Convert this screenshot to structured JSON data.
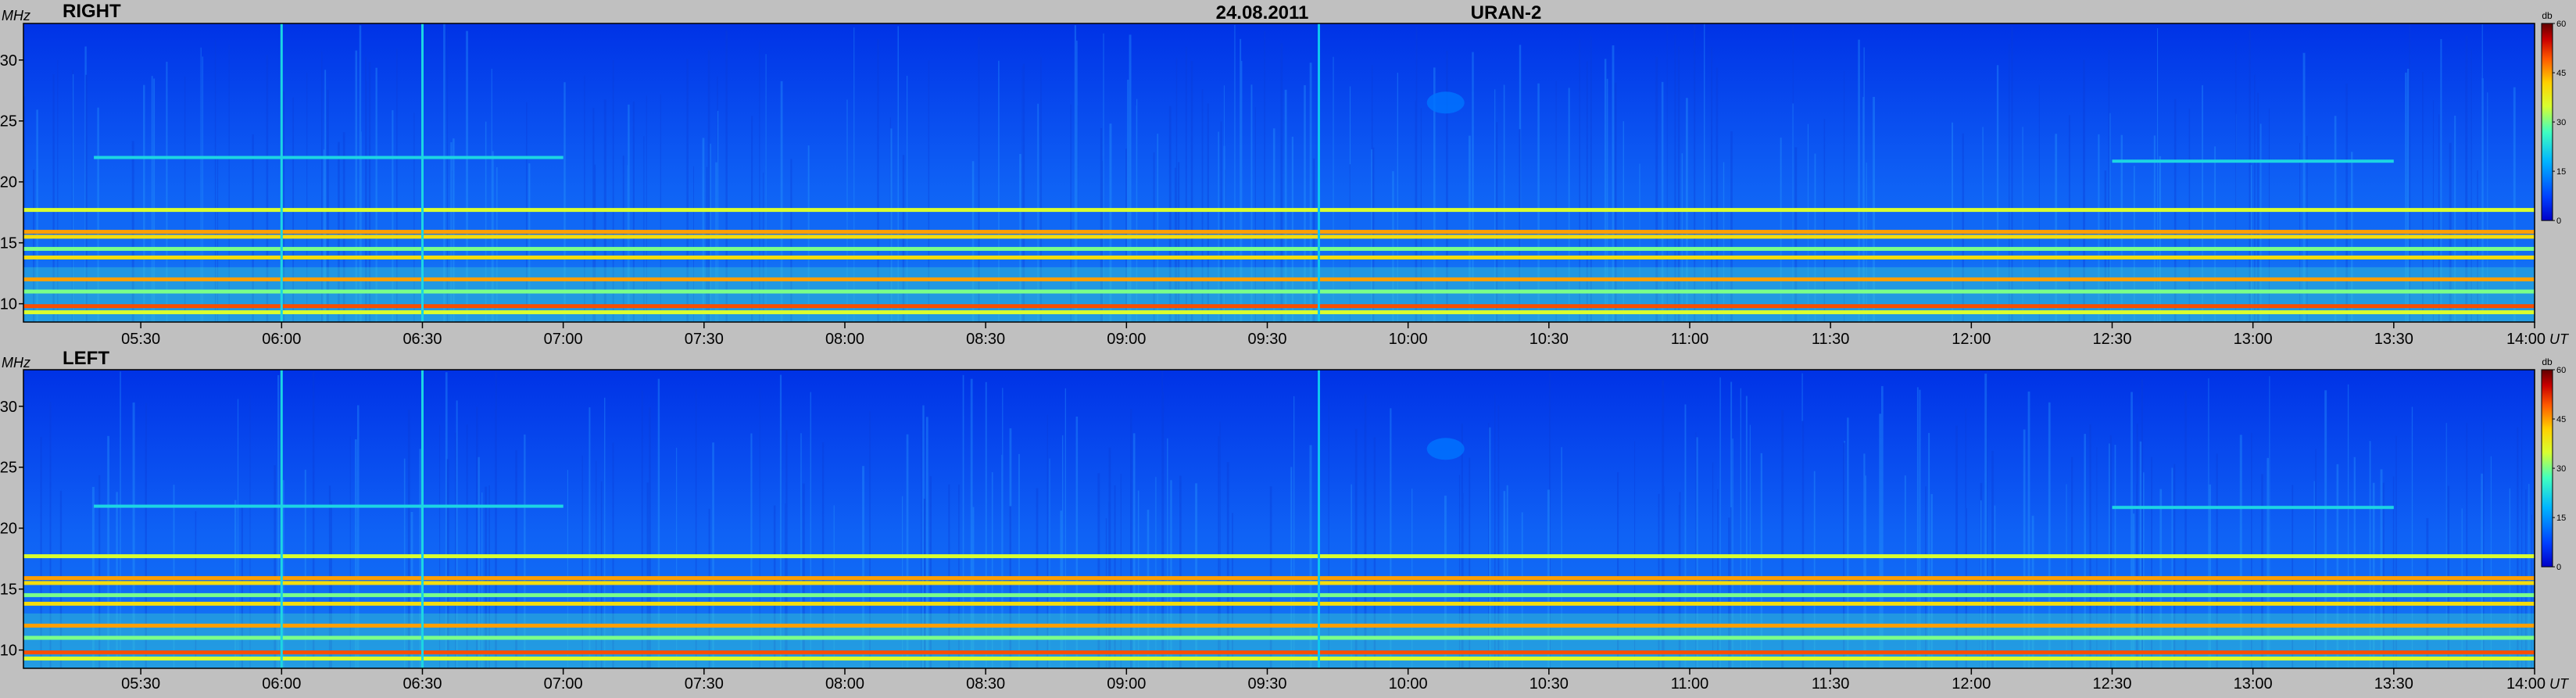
{
  "header": {
    "date": "24.08.2011",
    "instrument": "URAN-2"
  },
  "chart_data": [
    {
      "type": "heatmap",
      "panel_label": "RIGHT",
      "ylabel": "MHz",
      "xlabel_unit": "UT",
      "x_ticks": [
        "05:30",
        "06:00",
        "06:30",
        "07:00",
        "07:30",
        "08:00",
        "08:30",
        "09:00",
        "09:30",
        "10:00",
        "10:30",
        "11:00",
        "11:30",
        "12:00",
        "12:30",
        "13:00",
        "13:30",
        "14:00"
      ],
      "y_ticks": [
        10,
        15,
        20,
        25,
        30
      ],
      "ylim": [
        8.5,
        33
      ],
      "time_range": [
        "05:05",
        "14:00"
      ],
      "colorbar": {
        "unit": "db",
        "ticks": [
          0,
          15,
          30,
          45,
          60
        ],
        "range": [
          0,
          60
        ]
      },
      "features": [
        {
          "kind": "band",
          "freq_mhz": 17.7,
          "level_db": 35
        },
        {
          "kind": "band",
          "freq_mhz": 15.9,
          "level_db": 45
        },
        {
          "kind": "band",
          "freq_mhz": 15.5,
          "level_db": 40
        },
        {
          "kind": "band",
          "freq_mhz": 14.5,
          "level_db": 30
        },
        {
          "kind": "band",
          "freq_mhz": 13.8,
          "level_db": 40
        },
        {
          "kind": "band",
          "freq_mhz": 12.0,
          "level_db": 45
        },
        {
          "kind": "band",
          "freq_mhz": 11.0,
          "level_db": 30
        },
        {
          "kind": "band",
          "freq_mhz": 9.8,
          "level_db": 50
        },
        {
          "kind": "band",
          "freq_mhz": 9.3,
          "level_db": 35
        },
        {
          "kind": "line",
          "freq_mhz": 22.0,
          "from": "05:20",
          "to": "07:00",
          "level_db": 22
        },
        {
          "kind": "line",
          "freq_mhz": 21.7,
          "from": "12:30",
          "to": "13:30",
          "level_db": 22
        },
        {
          "kind": "spike",
          "time": "06:00",
          "level_db": 22
        },
        {
          "kind": "spike",
          "time": "06:30",
          "level_db": 22
        },
        {
          "kind": "spike",
          "time": "09:41",
          "level_db": 20
        },
        {
          "kind": "blob",
          "time": "10:08",
          "freq_mhz": 26.5,
          "level_db": 12
        }
      ]
    },
    {
      "type": "heatmap",
      "panel_label": "LEFT",
      "ylabel": "MHz",
      "xlabel_unit": "UT",
      "x_ticks": [
        "05:30",
        "06:00",
        "06:30",
        "07:00",
        "07:30",
        "08:00",
        "08:30",
        "09:00",
        "09:30",
        "10:00",
        "10:30",
        "11:00",
        "11:30",
        "12:00",
        "12:30",
        "13:00",
        "13:30",
        "14:00"
      ],
      "y_ticks": [
        10,
        15,
        20,
        25,
        30
      ],
      "ylim": [
        8.5,
        33
      ],
      "time_range": [
        "05:05",
        "14:00"
      ],
      "colorbar": {
        "unit": "db",
        "ticks": [
          0,
          15,
          30,
          45,
          60
        ],
        "range": [
          0,
          60
        ]
      },
      "features": [
        {
          "kind": "band",
          "freq_mhz": 17.7,
          "level_db": 35
        },
        {
          "kind": "band",
          "freq_mhz": 15.9,
          "level_db": 45
        },
        {
          "kind": "band",
          "freq_mhz": 15.5,
          "level_db": 40
        },
        {
          "kind": "band",
          "freq_mhz": 14.5,
          "level_db": 30
        },
        {
          "kind": "band",
          "freq_mhz": 13.8,
          "level_db": 40
        },
        {
          "kind": "band",
          "freq_mhz": 12.0,
          "level_db": 45
        },
        {
          "kind": "band",
          "freq_mhz": 11.0,
          "level_db": 30
        },
        {
          "kind": "band",
          "freq_mhz": 9.8,
          "level_db": 50
        },
        {
          "kind": "band",
          "freq_mhz": 9.3,
          "level_db": 35
        },
        {
          "kind": "line",
          "freq_mhz": 21.8,
          "from": "05:20",
          "to": "07:00",
          "level_db": 22
        },
        {
          "kind": "line",
          "freq_mhz": 21.7,
          "from": "12:30",
          "to": "13:30",
          "level_db": 22
        },
        {
          "kind": "spike",
          "time": "06:00",
          "level_db": 22
        },
        {
          "kind": "spike",
          "time": "06:30",
          "level_db": 22
        },
        {
          "kind": "spike",
          "time": "09:41",
          "level_db": 20
        },
        {
          "kind": "blob",
          "time": "10:08",
          "freq_mhz": 26.5,
          "level_db": 12
        }
      ]
    }
  ]
}
